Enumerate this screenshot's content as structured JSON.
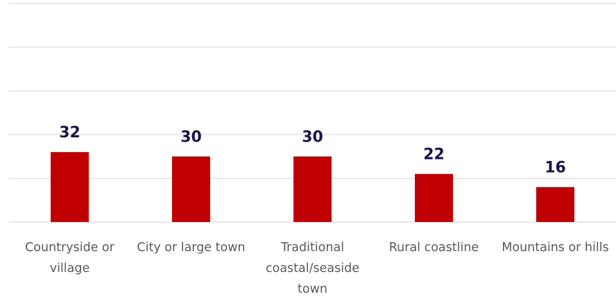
{
  "chart_data": {
    "type": "bar",
    "categories": [
      "Countryside or village",
      "City or large town",
      "Traditional coastal/seaside town",
      "Rural coastline",
      "Mountains or hills"
    ],
    "values": [
      32,
      30,
      30,
      22,
      16
    ],
    "color": "#c00000",
    "label_color": "#17144a",
    "ylim": [
      0,
      100
    ],
    "yticks": [
      0,
      20,
      40,
      60,
      80,
      100
    ],
    "grid": true
  }
}
